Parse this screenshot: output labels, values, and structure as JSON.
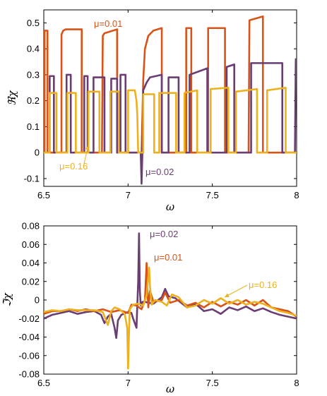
{
  "colors": {
    "mu_0_01": "#D95319",
    "mu_0_02": "#6A3D73",
    "mu_0_16": "#EDB120"
  },
  "chart_data": [
    {
      "type": "line",
      "title": "",
      "xlabel": "ω",
      "ylabel": "ℜχ",
      "xlim": [
        6.5,
        8
      ],
      "ylim": [
        -0.13,
        0.55
      ],
      "xticks": [
        "6.5",
        "7",
        "7.5",
        "8"
      ],
      "yticks": [
        "-0.1",
        "0",
        "0.1",
        "0.2",
        "0.3",
        "0.4",
        "0.5"
      ],
      "annotations": [
        "μ=0.01",
        "μ=0.02",
        "μ=0.16"
      ],
      "series": [
        {
          "name": "μ=0.01",
          "color": "#D95319",
          "x": [
            6.5,
            6.505,
            6.505,
            6.522,
            6.522,
            6.605,
            6.605,
            6.615,
            6.63,
            6.725,
            6.725,
            6.845,
            6.85,
            6.86,
            6.935,
            6.935,
            6.97,
            7.0,
            7.045,
            7.06,
            7.08,
            7.09,
            7.1,
            7.12,
            7.15,
            7.2,
            7.2,
            7.345,
            7.345,
            7.375,
            7.375,
            7.475,
            7.475,
            7.575,
            7.575,
            7.715,
            7.72,
            7.8,
            7.8,
            8.0
          ],
          "y": [
            0.0,
            0.0,
            0.47,
            0.47,
            0.0,
            0.0,
            0.455,
            0.47,
            0.475,
            0.475,
            0.0,
            0.0,
            0.45,
            0.46,
            0.475,
            0.0,
            0.0,
            0.0,
            0.0,
            0.0,
            0.0,
            0.28,
            0.4,
            0.45,
            0.47,
            0.48,
            0.0,
            0.0,
            0.48,
            0.48,
            0.0,
            0.0,
            0.48,
            0.48,
            0.0,
            0.0,
            0.51,
            0.525,
            0.0,
            0.0
          ]
        },
        {
          "name": "μ=0.02",
          "color": "#6A3D73",
          "x": [
            6.5,
            6.535,
            6.535,
            6.56,
            6.56,
            6.635,
            6.635,
            6.66,
            6.66,
            6.74,
            6.74,
            6.76,
            6.76,
            6.795,
            6.795,
            6.86,
            6.86,
            6.9,
            6.9,
            6.935,
            6.935,
            6.955,
            6.955,
            6.985,
            6.985,
            7.075,
            7.08,
            7.085,
            7.09,
            7.11,
            7.13,
            7.2,
            7.2,
            7.24,
            7.24,
            7.3,
            7.3,
            7.365,
            7.365,
            7.47,
            7.47,
            7.585,
            7.585,
            7.63,
            7.63,
            7.73,
            7.73,
            7.915,
            7.915,
            7.99,
            7.995,
            8.0
          ],
          "y": [
            0.0,
            0.0,
            0.295,
            0.295,
            0.0,
            0.0,
            0.3,
            0.3,
            0.0,
            0.0,
            0.295,
            0.295,
            0.0,
            0.0,
            0.29,
            0.29,
            0.0,
            0.0,
            0.285,
            0.285,
            0.0,
            0.0,
            0.3,
            0.3,
            0.0,
            0.0,
            -0.12,
            0.0,
            0.24,
            0.27,
            0.29,
            0.3,
            0.0,
            0.0,
            0.29,
            0.29,
            0.0,
            0.0,
            0.3,
            0.325,
            0.0,
            0.0,
            0.33,
            0.34,
            0.0,
            0.0,
            0.345,
            0.345,
            0.0,
            0.0,
            0.36,
            0.36
          ]
        },
        {
          "name": "μ=0.16",
          "color": "#EDB120",
          "x": [
            6.5,
            6.535,
            6.535,
            6.575,
            6.575,
            6.64,
            6.64,
            6.69,
            6.69,
            6.765,
            6.765,
            6.83,
            6.83,
            6.895,
            6.895,
            6.945,
            6.945,
            7.0,
            7.0,
            7.04,
            7.05,
            7.055,
            7.06,
            7.09,
            7.09,
            7.155,
            7.155,
            7.185,
            7.185,
            7.285,
            7.285,
            7.335,
            7.335,
            7.41,
            7.41,
            7.49,
            7.49,
            7.595,
            7.595,
            7.64,
            7.64,
            7.765,
            7.765,
            7.825,
            7.825,
            7.935,
            7.935,
            8.0
          ],
          "y": [
            0.0,
            0.0,
            0.23,
            0.23,
            0.0,
            0.0,
            0.23,
            0.23,
            0.0,
            0.0,
            0.235,
            0.235,
            0.0,
            0.0,
            0.235,
            0.235,
            0.0,
            0.0,
            0.24,
            0.24,
            0.2,
            0.14,
            0.0,
            0.0,
            0.225,
            0.225,
            0.0,
            0.0,
            0.23,
            0.23,
            0.0,
            0.0,
            0.23,
            0.24,
            0.0,
            0.0,
            0.245,
            0.25,
            0.0,
            0.0,
            0.235,
            0.245,
            0.0,
            0.0,
            0.24,
            0.25,
            0.0,
            0.0
          ]
        }
      ]
    },
    {
      "type": "line",
      "title": "",
      "xlabel": "ω",
      "ylabel": "ℑχ",
      "xlim": [
        6.5,
        8
      ],
      "ylim": [
        -0.08,
        0.08
      ],
      "xticks": [
        "6.5",
        "7",
        "7.5",
        "8"
      ],
      "yticks": [
        "-0.08",
        "-0.06",
        "-0.04",
        "-0.02",
        "0",
        "0.02",
        "0.04",
        "0.06",
        "0.08"
      ],
      "annotations": [
        "μ=0.02",
        "μ=0.01",
        "μ=0.16"
      ],
      "series": [
        {
          "name": "μ=0.02",
          "color": "#6A3D73",
          "x": [
            6.5,
            6.55,
            6.6,
            6.65,
            6.7,
            6.75,
            6.8,
            6.84,
            6.86,
            6.88,
            6.9,
            6.92,
            6.93,
            6.94,
            6.96,
            7.0,
            7.02,
            7.03,
            7.05,
            7.06,
            7.065,
            7.07,
            7.075,
            7.085,
            7.1,
            7.15,
            7.2,
            7.22,
            7.24,
            7.28,
            7.35,
            7.4,
            7.45,
            7.5,
            7.55,
            7.6,
            7.65,
            7.7,
            7.75,
            7.8,
            7.85,
            7.9,
            7.95,
            8.0
          ],
          "y": [
            -0.02,
            -0.016,
            -0.014,
            -0.012,
            -0.015,
            -0.013,
            -0.012,
            -0.016,
            -0.025,
            -0.018,
            -0.015,
            -0.03,
            -0.041,
            -0.022,
            -0.016,
            -0.013,
            -0.014,
            -0.02,
            -0.03,
            0.02,
            0.072,
            0.01,
            -0.006,
            -0.002,
            -0.002,
            -0.004,
            0.003,
            0.012,
            0.004,
            0.002,
            -0.008,
            -0.004,
            -0.012,
            -0.01,
            -0.015,
            -0.008,
            -0.011,
            -0.007,
            -0.012,
            -0.009,
            -0.013,
            -0.016,
            -0.018,
            -0.02
          ]
        },
        {
          "name": "μ=0.01",
          "color": "#D95319",
          "x": [
            6.5,
            6.55,
            6.6,
            6.65,
            6.7,
            6.75,
            6.8,
            6.85,
            6.9,
            6.95,
            7.0,
            7.02,
            7.05,
            7.08,
            7.1,
            7.11,
            7.115,
            7.12,
            7.13,
            7.15,
            7.2,
            7.22,
            7.25,
            7.3,
            7.35,
            7.4,
            7.45,
            7.5,
            7.55,
            7.6,
            7.65,
            7.7,
            7.75,
            7.8,
            7.85,
            7.9,
            7.95,
            8.0
          ],
          "y": [
            -0.015,
            -0.012,
            -0.012,
            -0.01,
            -0.012,
            -0.01,
            -0.012,
            -0.01,
            -0.013,
            -0.011,
            -0.014,
            -0.005,
            -0.006,
            -0.01,
            0.0,
            0.04,
            0.01,
            -0.008,
            0.01,
            -0.002,
            0.0,
            0.008,
            -0.003,
            0.0,
            -0.006,
            -0.003,
            -0.008,
            -0.002,
            -0.007,
            -0.002,
            -0.005,
            0.0,
            -0.006,
            0.0,
            -0.008,
            -0.01,
            -0.012,
            -0.018
          ]
        },
        {
          "name": "μ=0.16",
          "color": "#EDB120",
          "x": [
            6.5,
            6.55,
            6.6,
            6.65,
            6.7,
            6.75,
            6.8,
            6.85,
            6.88,
            6.9,
            6.92,
            6.95,
            6.98,
            6.995,
            7.0,
            7.005,
            7.01,
            7.03,
            7.06,
            7.09,
            7.11,
            7.125,
            7.13,
            7.14,
            7.16,
            7.2,
            7.23,
            7.26,
            7.3,
            7.35,
            7.4,
            7.45,
            7.5,
            7.55,
            7.6,
            7.65,
            7.7,
            7.75,
            7.8,
            7.85,
            7.9,
            7.95,
            8.0
          ],
          "y": [
            -0.013,
            -0.011,
            -0.012,
            -0.01,
            -0.011,
            -0.011,
            -0.011,
            -0.013,
            -0.027,
            -0.012,
            -0.008,
            -0.01,
            -0.015,
            -0.03,
            -0.074,
            -0.04,
            -0.01,
            -0.005,
            -0.004,
            -0.006,
            0.005,
            0.035,
            0.015,
            -0.005,
            0.0,
            -0.002,
            -0.006,
            0.006,
            0.003,
            -0.008,
            -0.006,
            0.0,
            -0.004,
            0.002,
            -0.004,
            0.0,
            -0.005,
            -0.002,
            -0.004,
            -0.008,
            -0.012,
            -0.014,
            -0.017
          ]
        }
      ]
    }
  ]
}
